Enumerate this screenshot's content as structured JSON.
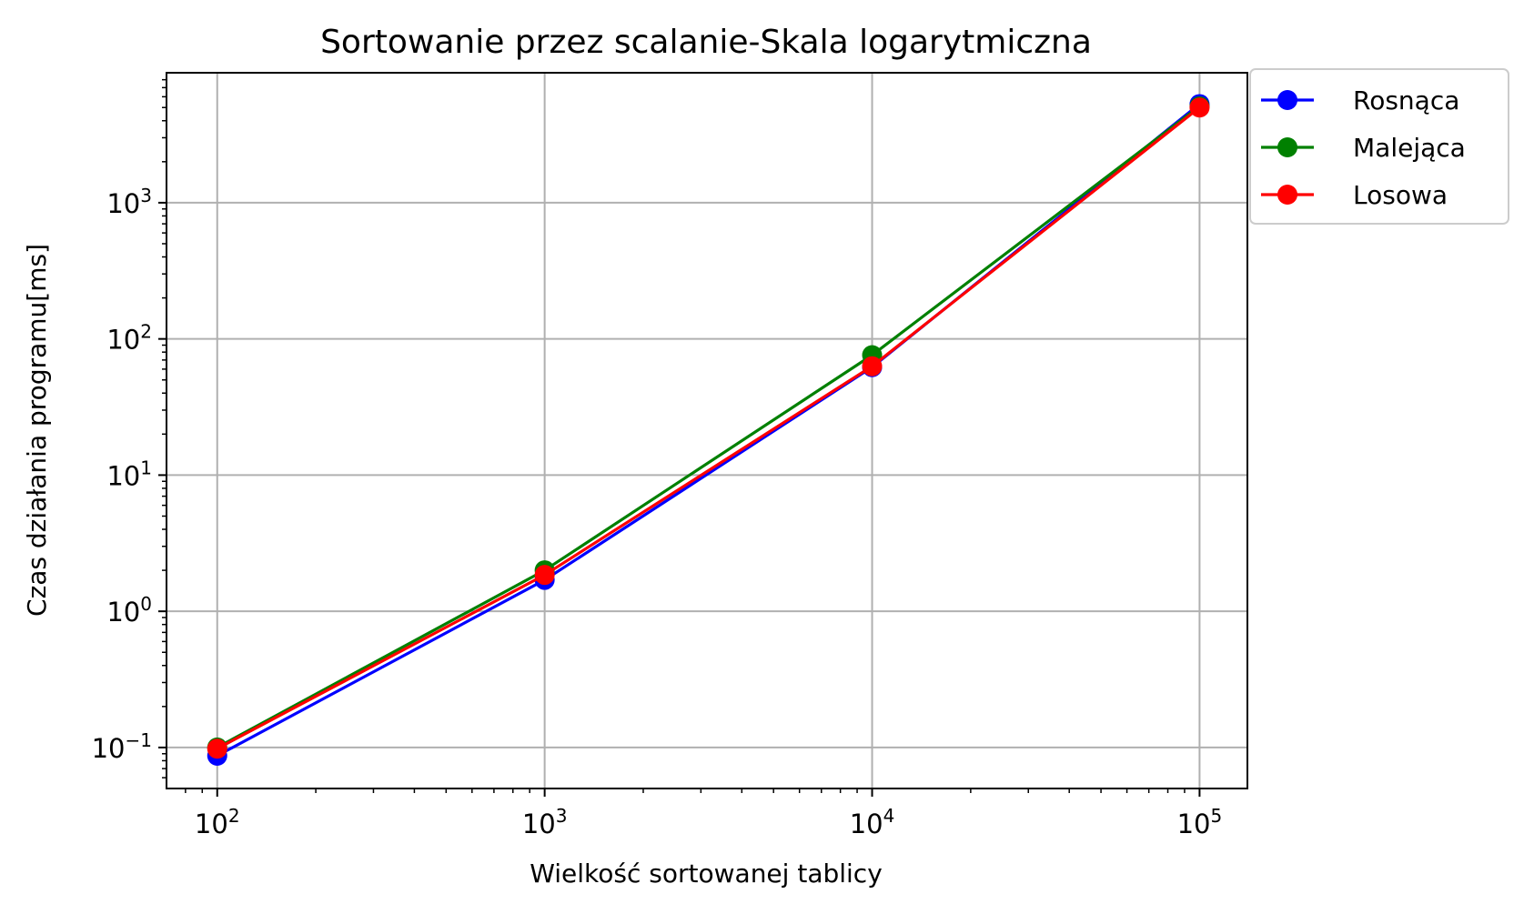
{
  "chart_data": {
    "type": "line",
    "title": "Sortowanie przez scalanie-Skala logarytmiczna",
    "xlabel": "Wielkość sortowanej tablicy",
    "ylabel": "Czas działania programu[ms]",
    "xscale": "log",
    "yscale": "log",
    "xlim": [
      70,
      140000
    ],
    "ylim": [
      0.05,
      9000
    ],
    "grid": true,
    "legend_position": "outside-top-right",
    "x": [
      100,
      1000,
      10000,
      100000
    ],
    "x_ticks": [
      {
        "value": 100,
        "base": "10",
        "exp": "2"
      },
      {
        "value": 1000,
        "base": "10",
        "exp": "3"
      },
      {
        "value": 10000,
        "base": "10",
        "exp": "4"
      },
      {
        "value": 100000,
        "base": "10",
        "exp": "5"
      }
    ],
    "y_ticks": [
      {
        "value": 0.1,
        "base": "10",
        "exp": "−1"
      },
      {
        "value": 1,
        "base": "10",
        "exp": "0"
      },
      {
        "value": 10,
        "base": "10",
        "exp": "1"
      },
      {
        "value": 100,
        "base": "10",
        "exp": "2"
      },
      {
        "value": 1000,
        "base": "10",
        "exp": "3"
      }
    ],
    "series": [
      {
        "name": "Rosnąca",
        "color": "#0000ff",
        "marker": "circle",
        "values": [
          0.087,
          1.7,
          62,
          5300
        ]
      },
      {
        "name": "Malejąca",
        "color": "#008000",
        "marker": "circle",
        "values": [
          0.1,
          2.0,
          76,
          5100
        ]
      },
      {
        "name": "Losowa",
        "color": "#ff0000",
        "marker": "circle",
        "values": [
          0.098,
          1.85,
          63,
          5000
        ]
      }
    ]
  }
}
